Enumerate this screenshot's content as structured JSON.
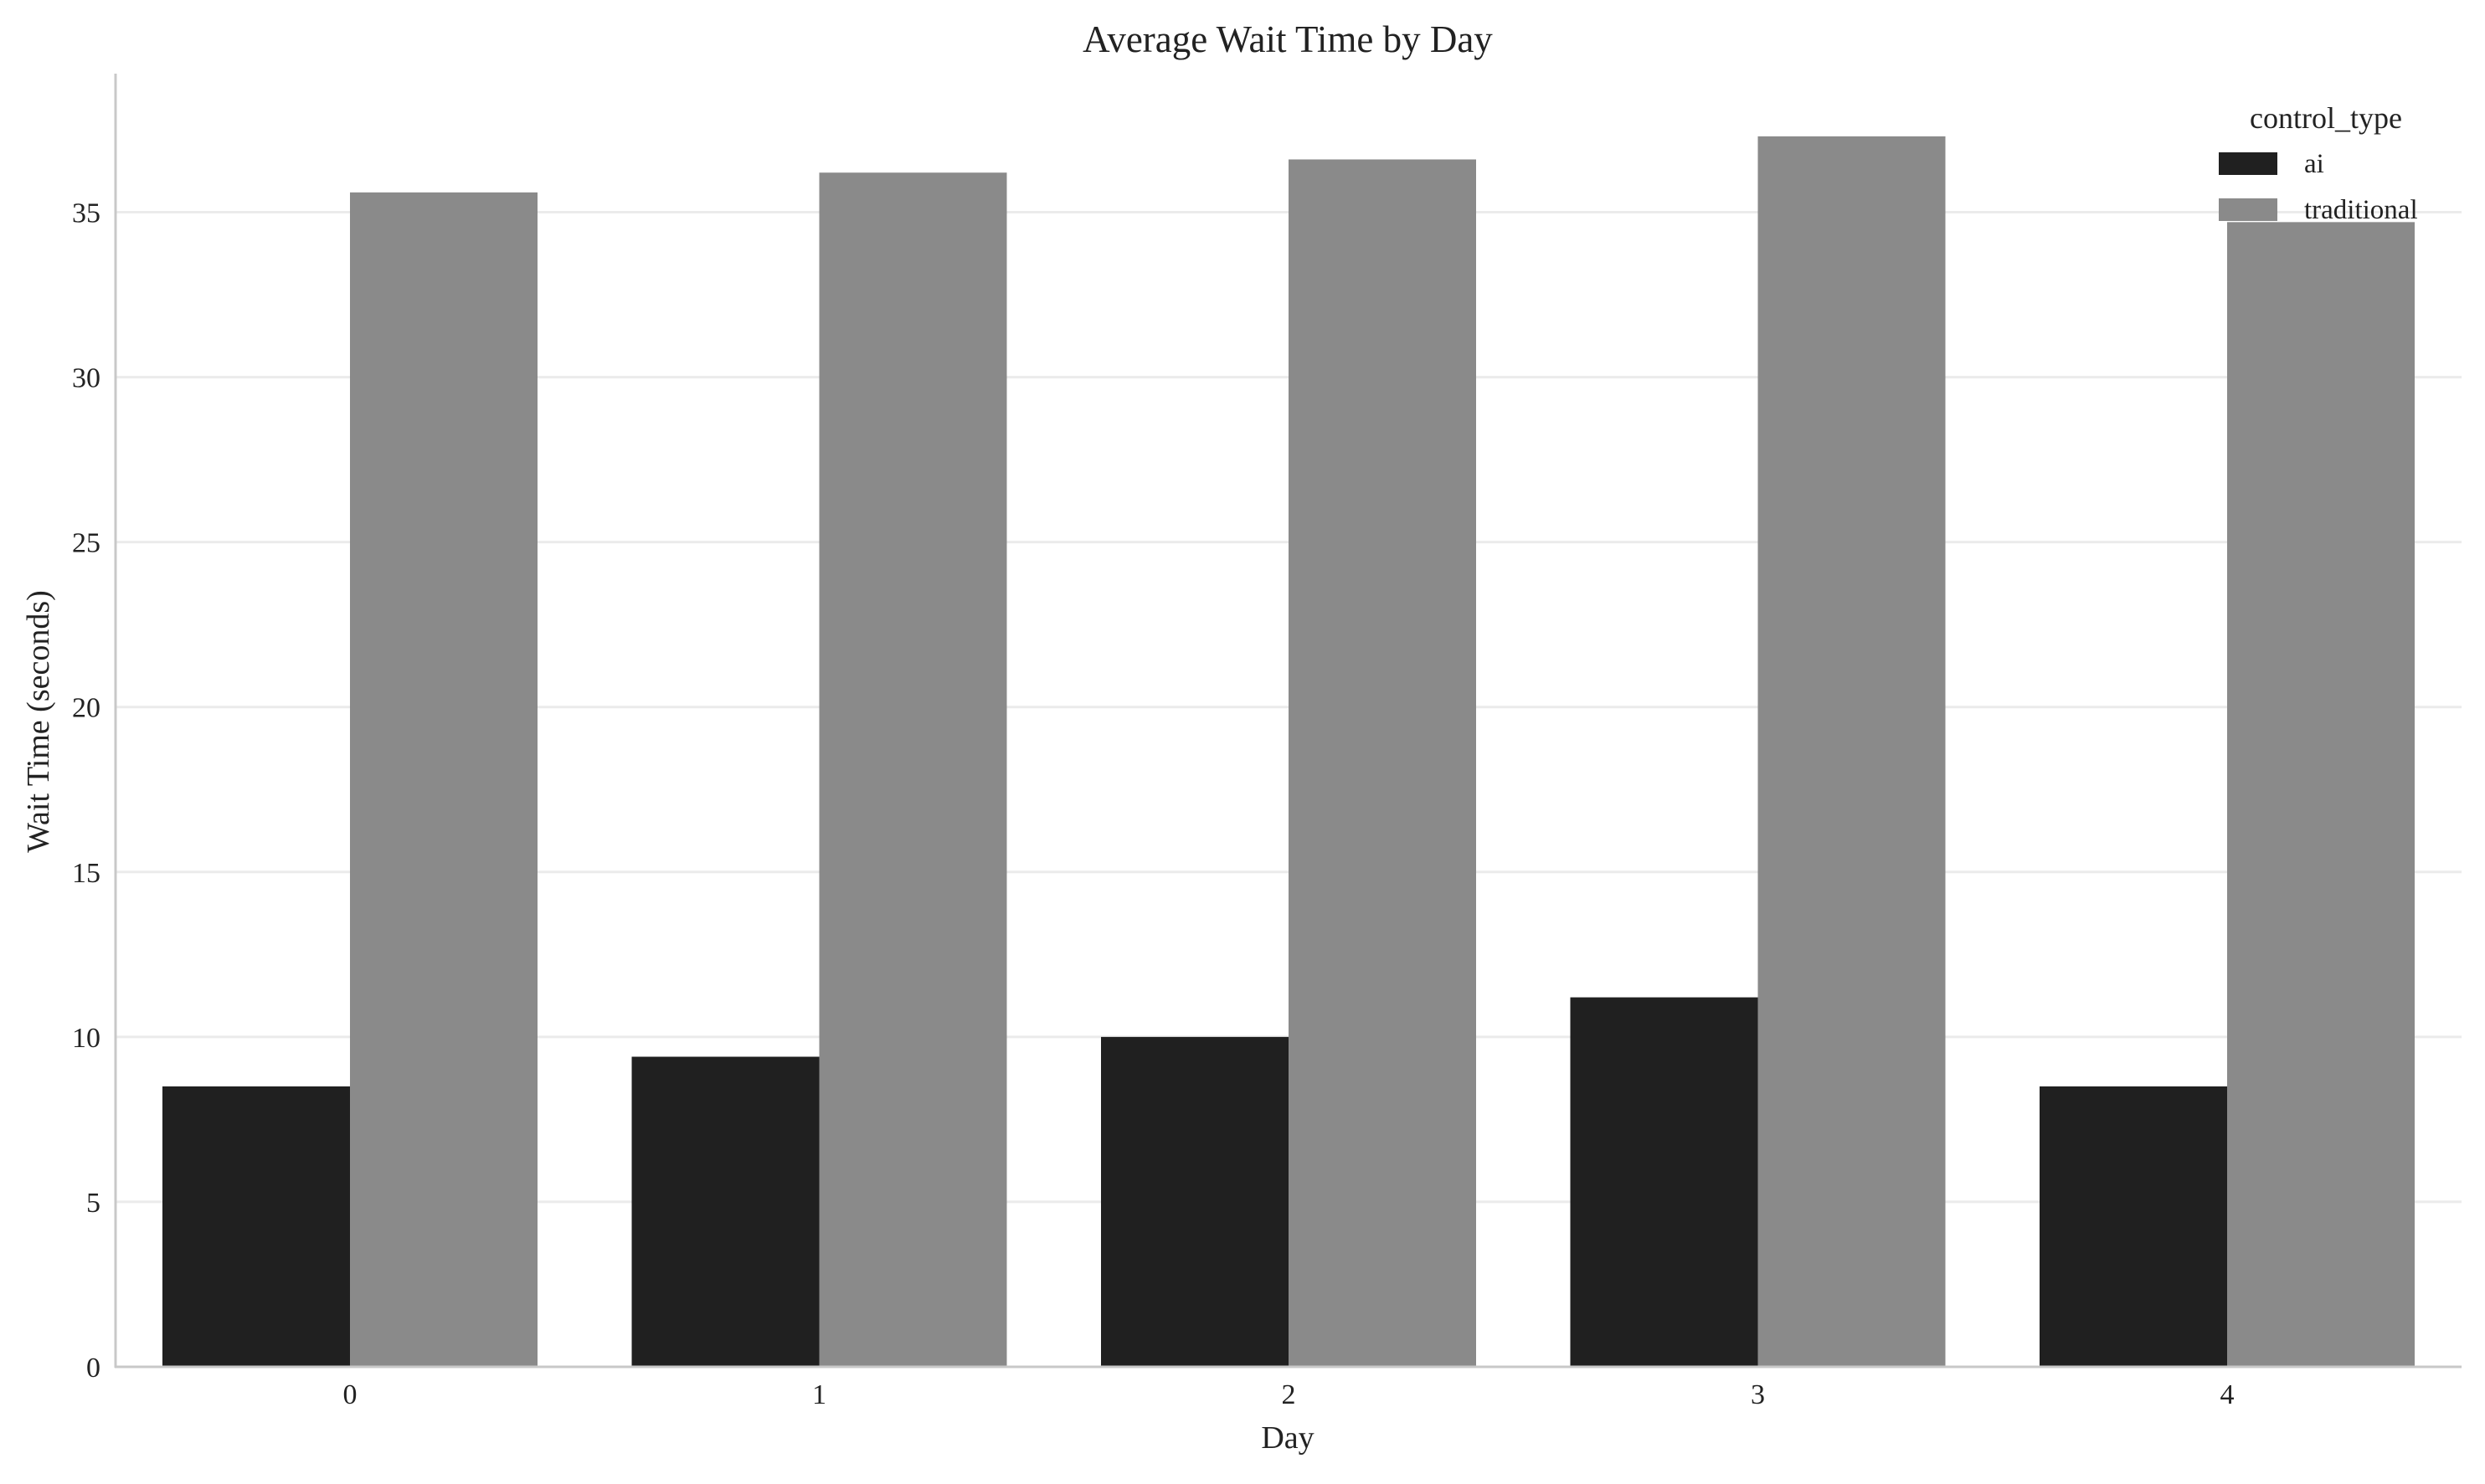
{
  "chart_data": {
    "type": "bar",
    "title": "Average Wait Time by Day",
    "xlabel": "Day",
    "ylabel": "Wait Time (seconds)",
    "categories": [
      "0",
      "1",
      "2",
      "3",
      "4"
    ],
    "series": [
      {
        "name": "ai",
        "values": [
          8.5,
          9.4,
          10.0,
          11.2,
          8.5
        ],
        "color": "#202020"
      },
      {
        "name": "traditional",
        "values": [
          35.6,
          36.2,
          36.6,
          37.3,
          34.7
        ],
        "color": "#8a8a8a"
      }
    ],
    "ylim": [
      0,
      39.2
    ],
    "yticks": [
      0,
      5,
      10,
      15,
      20,
      25,
      30,
      35
    ],
    "grid": "horizontal",
    "legend": {
      "title": "control_type",
      "placement": "top-right"
    },
    "colors": {
      "gridline": "#ebebeb",
      "axis": "#c8c8c8",
      "text": "#222222"
    }
  }
}
